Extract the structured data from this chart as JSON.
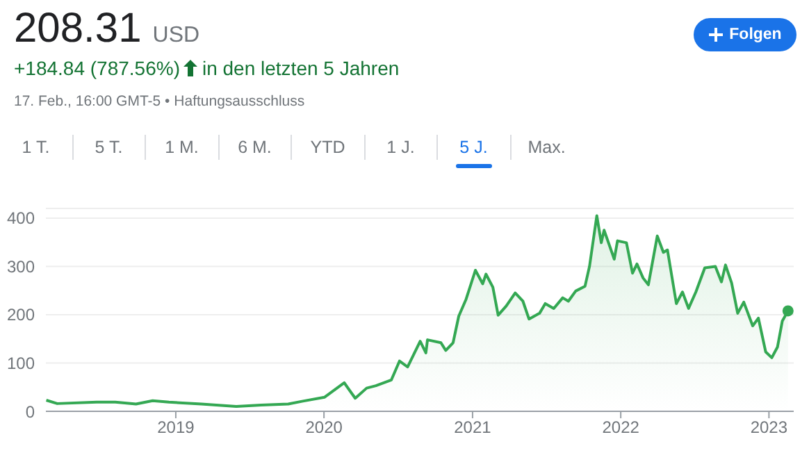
{
  "chart_data": {
    "type": "area",
    "title": "208.31",
    "annotations": [
      "USD",
      "+184.84 (787.56%)",
      "in den letzten 5 Jahren",
      "17. Feb., 16:00 GMT-5 • Haftungsausschluss",
      "1 T.",
      "5 T.",
      "1 M.",
      "6 M.",
      "YTD",
      "1 J.",
      "5 J.",
      "Max.",
      "Folgen"
    ],
    "x": [
      "2018-02-16",
      "2018-03-15",
      "2018-06-20",
      "2018-08-05",
      "2018-09-25",
      "2018-11-05",
      "2018-12-15",
      "2019-03-05",
      "2019-05-30",
      "2019-07-30",
      "2019-10-05",
      "2019-11-10",
      "2020-01-02",
      "2020-02-20",
      "2020-03-18",
      "2020-04-15",
      "2020-05-08",
      "2020-06-15",
      "2020-07-05",
      "2020-07-25",
      "2020-08-25",
      "2020-09-08",
      "2020-09-12",
      "2020-10-15",
      "2020-10-27",
      "2020-11-14",
      "2020-11-28",
      "2020-12-16",
      "2021-01-08",
      "2021-01-26",
      "2021-02-03",
      "2021-02-20",
      "2021-03-05",
      "2021-03-25",
      "2021-04-16",
      "2021-05-05",
      "2021-05-20",
      "2021-06-15",
      "2021-06-29",
      "2021-07-20",
      "2021-08-11",
      "2021-08-25",
      "2021-09-12",
      "2021-10-05",
      "2021-10-16",
      "2021-11-03",
      "2021-11-14",
      "2021-11-21",
      "2021-12-16",
      "2021-12-24",
      "2022-01-15",
      "2022-01-30",
      "2022-02-10",
      "2022-02-25",
      "2022-03-10",
      "2022-04-01",
      "2022-04-16",
      "2022-04-26",
      "2022-05-18",
      "2022-06-02",
      "2022-06-17",
      "2022-07-05",
      "2022-07-27",
      "2022-08-22",
      "2022-09-06",
      "2022-09-16",
      "2022-10-01",
      "2022-10-16",
      "2022-10-31",
      "2022-11-22",
      "2022-12-06",
      "2022-12-24",
      "2023-01-08",
      "2023-01-22",
      "2023-02-03",
      "2023-02-17"
    ],
    "series": [
      {
        "color": "#34a853",
        "values": [
          23,
          16,
          19,
          19,
          15,
          22,
          19,
          15,
          10,
          13,
          15,
          21,
          29,
          59,
          27,
          48,
          53,
          65,
          104,
          92,
          145,
          121,
          148,
          142,
          126,
          142,
          197,
          232,
          292,
          264,
          284,
          257,
          199,
          218,
          245,
          228,
          191,
          203,
          223,
          213,
          235,
          228,
          249,
          259,
          300,
          405,
          349,
          375,
          315,
          353,
          349,
          286,
          305,
          276,
          262,
          363,
          329,
          334,
          223,
          247,
          213,
          247,
          297,
          300,
          268,
          303,
          266,
          203,
          226,
          177,
          193,
          123,
          111,
          133,
          187,
          208
        ]
      }
    ],
    "xlim": [
      "2018-02-15",
      "2023-03-03"
    ],
    "xticks": [
      "2019",
      "2020",
      "2021",
      "2022",
      "2023"
    ],
    "ylim": [
      0,
      420
    ],
    "yticks": [
      0,
      100,
      200,
      300,
      400
    ],
    "grid": "y"
  }
}
